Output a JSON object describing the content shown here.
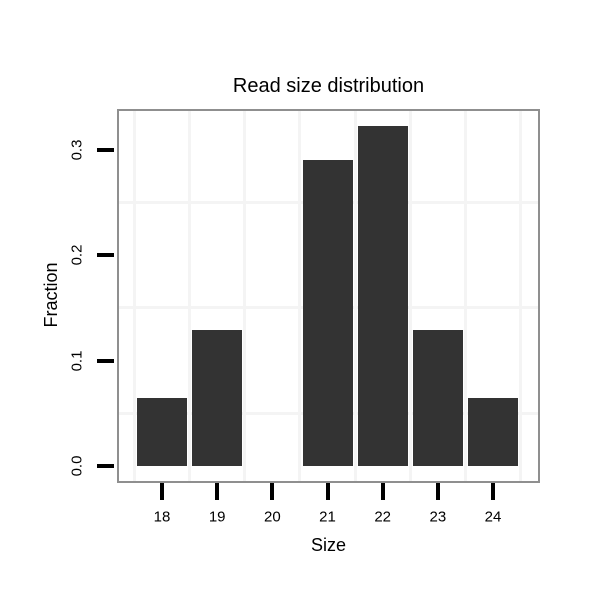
{
  "chart_data": {
    "type": "bar",
    "title": "Read size distribution",
    "xlabel": "Size",
    "ylabel": "Fraction",
    "categories": [
      "18",
      "19",
      "20",
      "21",
      "22",
      "23",
      "24"
    ],
    "values": [
      0.0645,
      0.129,
      0,
      0.2903,
      0.3226,
      0.129,
      0.0645
    ],
    "ytick_labels": [
      "0.0",
      "0.1",
      "0.2",
      "0.3"
    ],
    "ytick_values": [
      0,
      0.1,
      0.2,
      0.3
    ],
    "ylim": [
      -0.014,
      0.337
    ],
    "grid": "faint minor gridlines at half-intervals, no major gridlines visible",
    "legend": "none",
    "colors": {
      "bar_fill": "#333333",
      "panel_border": "#8f8f8f",
      "gridline": "#f4f4f4",
      "tick": "#000000",
      "text": "#000000",
      "background": "#ffffff"
    }
  }
}
